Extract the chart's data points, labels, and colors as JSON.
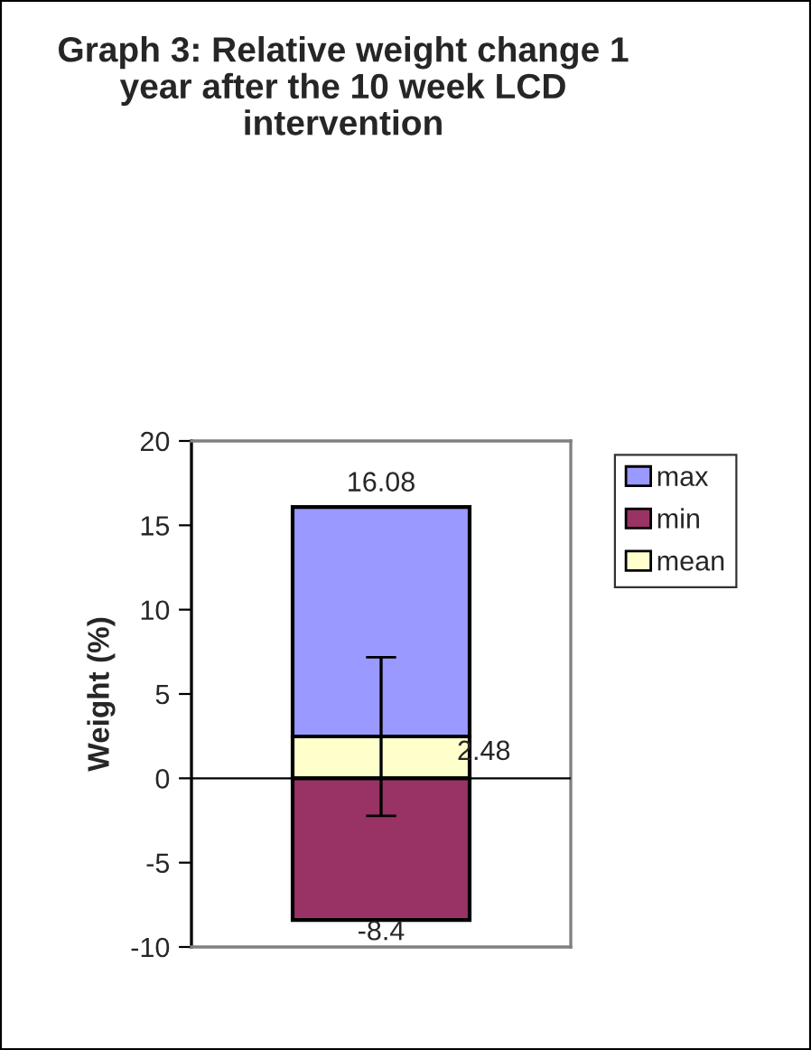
{
  "chart_data": {
    "type": "bar",
    "title": "Graph 3: Relative weight change 1 year after the 10 week LCD intervention",
    "ylabel": "Weight (%)",
    "categories": [
      null
    ],
    "stacked": true,
    "series": [
      {
        "name": "mean",
        "color": "#ffffcc",
        "values": [
          2.48
        ],
        "value_labels": [
          "2.48"
        ],
        "errors": [
          4.7
        ]
      },
      {
        "name": "min",
        "color": "#993366",
        "values": [
          -8.4
        ],
        "value_labels": [
          "-8.4"
        ]
      },
      {
        "name": "max",
        "color": "#9999ff",
        "values": [
          13.6
        ]
      }
    ],
    "annotations": [
      {
        "text": "16.08",
        "y": 16.08
      }
    ],
    "ylim": [
      -10,
      20
    ],
    "yticks": [
      -10,
      -5,
      0,
      5,
      10,
      15,
      20
    ],
    "ref_lines": [
      {
        "axis": "y",
        "value": 0,
        "color": "#000000"
      }
    ],
    "legend": "right"
  }
}
